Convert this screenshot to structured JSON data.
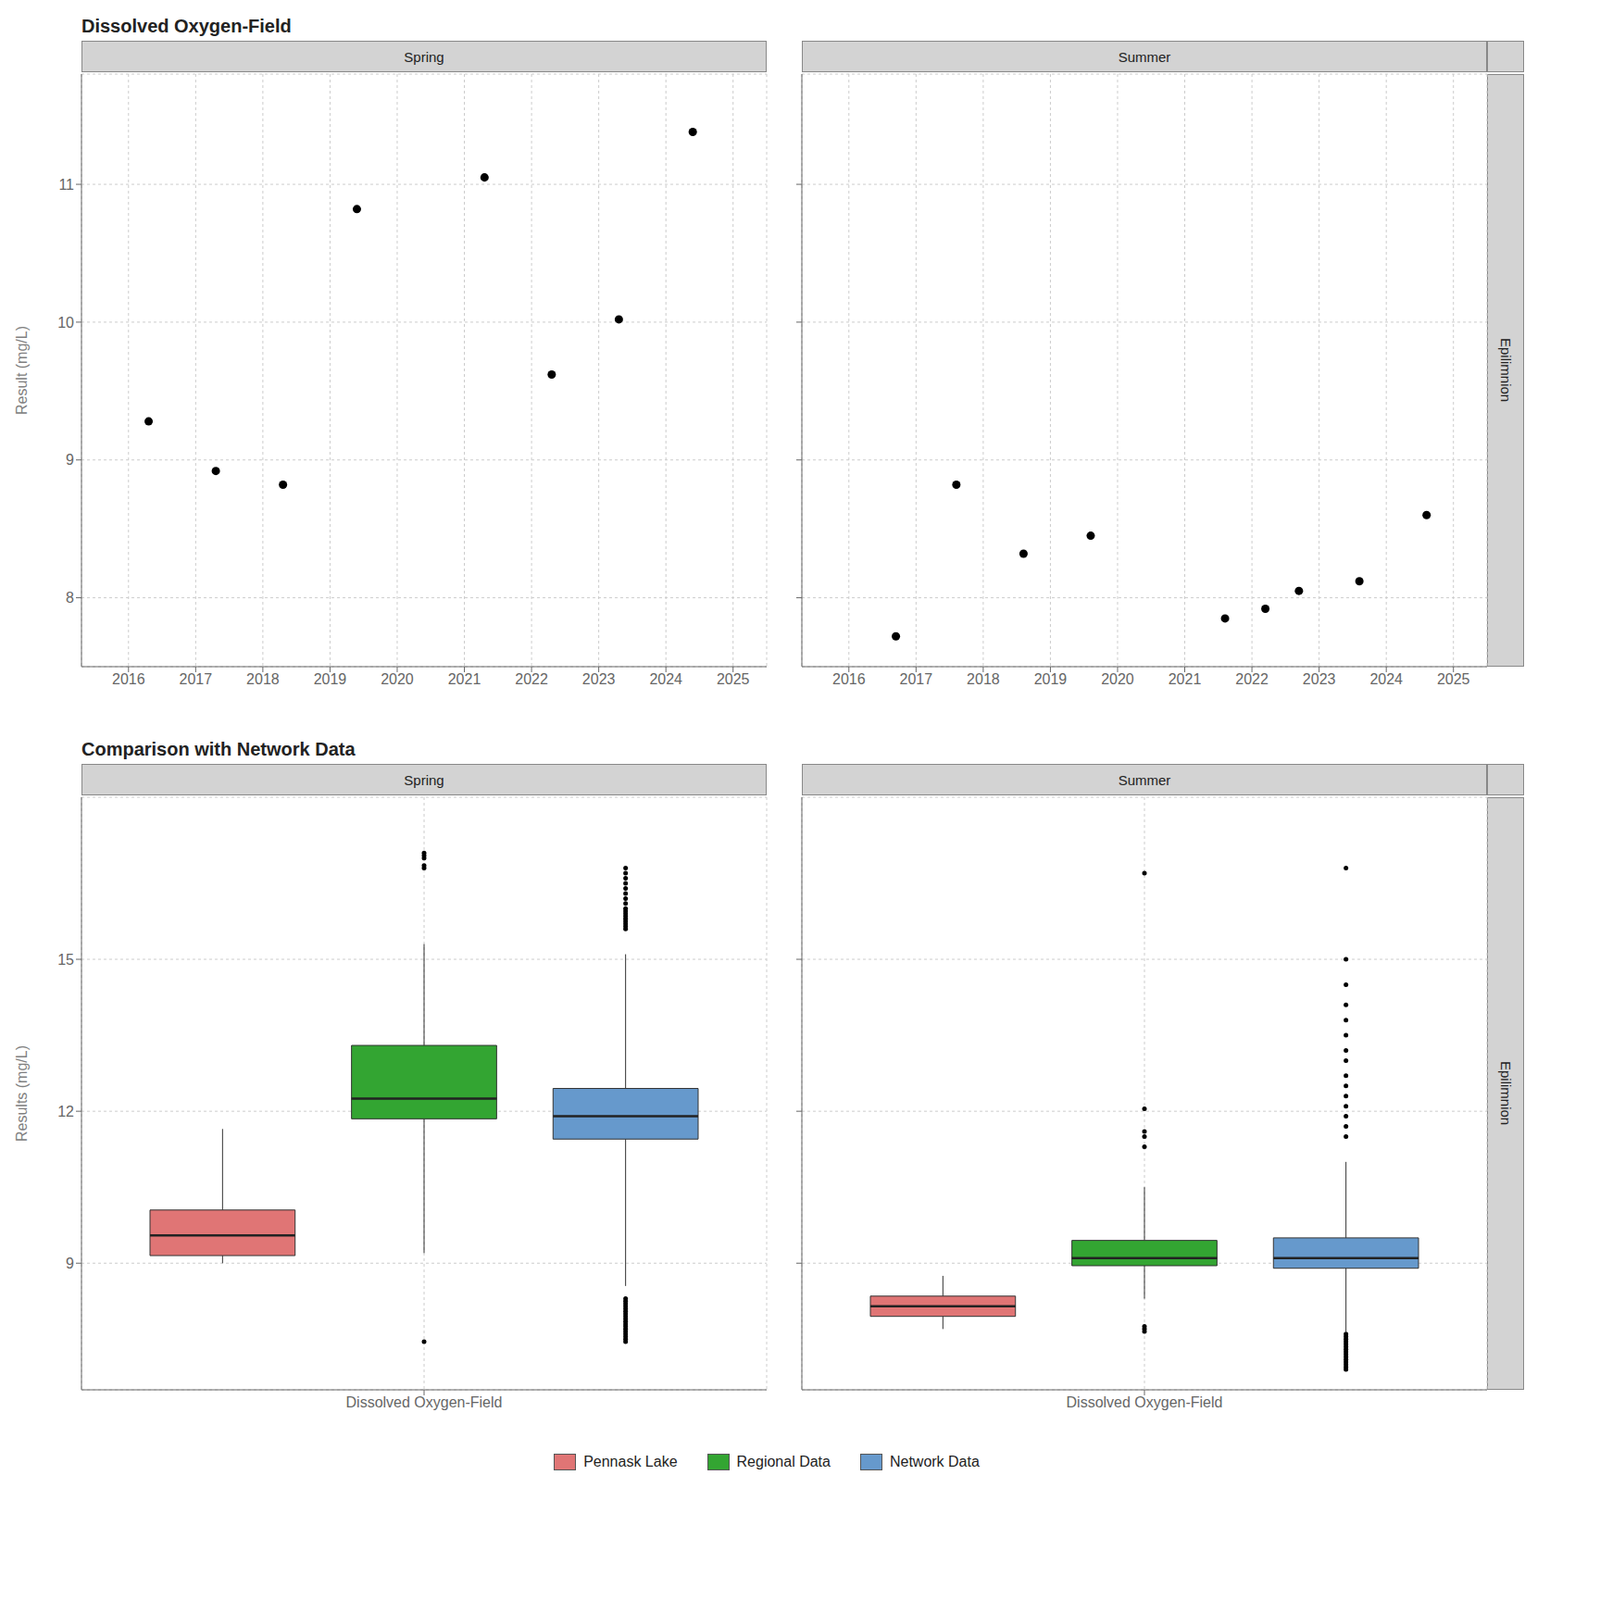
{
  "chart_data": [
    {
      "type": "scatter",
      "title": "Dissolved Oxygen-Field",
      "subtitle": "Spring",
      "y_label": "Result (mg/L)",
      "x": [
        2016.3,
        2017.3,
        2018.3,
        2019.4,
        2021.3,
        2022.3,
        2023.3,
        2024.4
      ],
      "values": [
        9.28,
        8.92,
        8.82,
        10.82,
        11.05,
        9.62,
        10.02,
        11.38
      ],
      "color": "#000000",
      "xlim": [
        2015.3,
        2025.5
      ],
      "xticks": [
        2016,
        2017,
        2018,
        2019,
        2020,
        2021,
        2022,
        2023,
        2024,
        2025
      ],
      "ylim": [
        7.5,
        11.8
      ],
      "yticks": [
        8,
        9,
        10,
        11
      ],
      "grid": true
    },
    {
      "type": "scatter",
      "subtitle": "Summer",
      "annotations": [
        "Epilimnion"
      ],
      "x": [
        2016.7,
        2017.6,
        2018.6,
        2019.6,
        2021.6,
        2022.2,
        2022.7,
        2023.6,
        2024.6
      ],
      "values": [
        7.72,
        8.82,
        8.32,
        8.45,
        7.85,
        7.92,
        8.05,
        8.12,
        8.6
      ],
      "color": "#000000",
      "xlim": [
        2015.3,
        2025.5
      ],
      "xticks": [
        2016,
        2017,
        2018,
        2019,
        2020,
        2021,
        2022,
        2023,
        2024,
        2025
      ],
      "ylim": [
        7.5,
        11.8
      ],
      "yticks": [
        8,
        9,
        10,
        11
      ],
      "grid": true,
      "tick_labels": "x"
    },
    {
      "type": "box",
      "title": "Comparison with Network Data",
      "subtitle": "Spring",
      "y_label": "Results (mg/L)",
      "categories": [
        "Dissolved Oxygen-Field"
      ],
      "series": [
        {
          "name": "Pennask Lake",
          "color": "#E07575",
          "q1": 9.15,
          "median": 9.55,
          "q3": 10.05,
          "whisker_low": 9.0,
          "whisker_high": 11.65,
          "outliers": []
        },
        {
          "name": "Regional Data",
          "color": "#33A532",
          "q1": 11.85,
          "median": 12.25,
          "q3": 13.3,
          "whisker_low": 9.2,
          "whisker_high": 15.3,
          "outliers": [
            7.45,
            16.8,
            16.85,
            17.0,
            17.05,
            17.1
          ]
        },
        {
          "name": "Network Data",
          "color": "#6699CC",
          "q1": 11.45,
          "median": 11.9,
          "q3": 12.45,
          "whisker_low": 8.55,
          "whisker_high": 15.1,
          "outliers": [
            7.45,
            7.5,
            7.55,
            7.6,
            7.65,
            7.7,
            7.75,
            7.8,
            7.85,
            7.9,
            7.95,
            8.0,
            8.05,
            8.1,
            8.15,
            8.2,
            8.25,
            8.3,
            15.6,
            15.65,
            15.7,
            15.75,
            15.8,
            15.85,
            15.9,
            15.95,
            16.0,
            16.1,
            16.2,
            16.3,
            16.4,
            16.5,
            16.6,
            16.7,
            16.8
          ]
        }
      ],
      "ylim": [
        6.5,
        18.2
      ],
      "yticks": [
        9,
        12,
        15
      ],
      "grid": true
    },
    {
      "type": "box",
      "subtitle": "Summer",
      "annotations": [
        "Epilimnion"
      ],
      "categories": [
        "Dissolved Oxygen-Field"
      ],
      "series": [
        {
          "name": "Pennask Lake",
          "color": "#E07575",
          "q1": 7.95,
          "median": 8.15,
          "q3": 8.35,
          "whisker_low": 7.7,
          "whisker_high": 8.75,
          "outliers": []
        },
        {
          "name": "Regional Data",
          "color": "#33A532",
          "q1": 8.95,
          "median": 9.1,
          "q3": 9.45,
          "whisker_low": 8.3,
          "whisker_high": 10.5,
          "outliers": [
            7.65,
            7.7,
            7.75,
            11.3,
            11.5,
            11.6,
            12.05,
            16.7
          ]
        },
        {
          "name": "Network Data",
          "color": "#6699CC",
          "q1": 8.9,
          "median": 9.1,
          "q3": 9.5,
          "whisker_low": 7.65,
          "whisker_high": 11.0,
          "outliers": [
            6.9,
            6.95,
            7.0,
            7.05,
            7.1,
            7.15,
            7.2,
            7.25,
            7.3,
            7.35,
            7.4,
            7.45,
            7.5,
            7.55,
            7.6,
            11.5,
            11.7,
            11.9,
            12.1,
            12.3,
            12.5,
            12.7,
            13.0,
            13.2,
            13.5,
            13.8,
            14.1,
            14.5,
            15.0,
            16.8
          ]
        }
      ],
      "ylim": [
        6.5,
        18.2
      ],
      "yticks": [
        9,
        12,
        15
      ],
      "grid": true,
      "tick_labels": "x",
      "legend": "bottom"
    }
  ]
}
